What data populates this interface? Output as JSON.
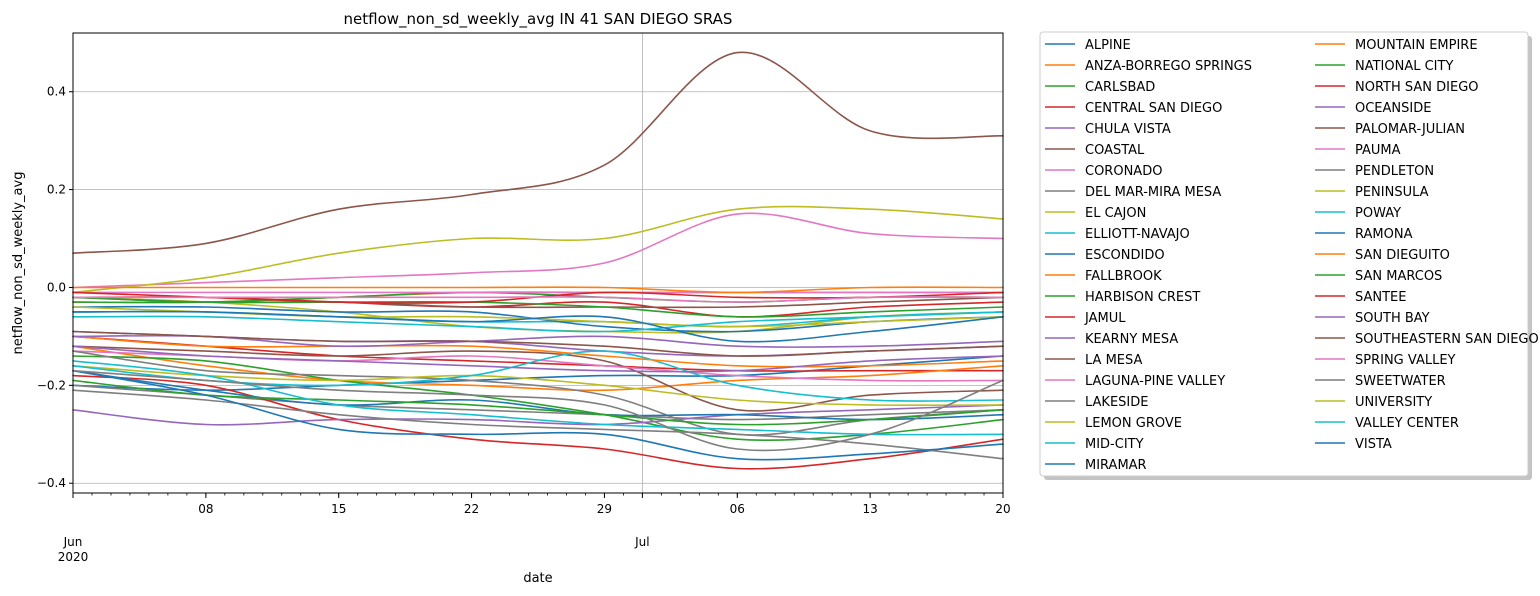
{
  "chart_data": {
    "type": "line",
    "title": "netflow_non_sd_weekly_avg IN 41 SAN DIEGO SRAS",
    "xlabel": "date",
    "ylabel": "netflow_non_sd_weekly_avg",
    "x_range": [
      "2020-06-01",
      "2020-07-20"
    ],
    "ylim": [
      -0.42,
      0.52
    ],
    "grid": "major",
    "legend_placement": "outside-right",
    "x_ticks": [
      {
        "date": "2020-06-01",
        "label": "Jun",
        "sublabel": "2020"
      },
      {
        "date": "2020-06-08",
        "label": "08"
      },
      {
        "date": "2020-06-15",
        "label": "15"
      },
      {
        "date": "2020-06-22",
        "label": "22"
      },
      {
        "date": "2020-06-29",
        "label": "29"
      },
      {
        "date": "2020-07-01",
        "label": "Jul"
      },
      {
        "date": "2020-07-06",
        "label": "06"
      },
      {
        "date": "2020-07-13",
        "label": "13"
      },
      {
        "date": "2020-07-20",
        "label": "20"
      }
    ],
    "y_ticks": [
      -0.4,
      -0.2,
      0.0,
      0.2,
      0.4
    ],
    "y_tick_labels": [
      "−0.4",
      "−0.2",
      "0.0",
      "0.2",
      "0.4"
    ],
    "x": [
      "2020-06-01",
      "2020-06-08",
      "2020-06-15",
      "2020-06-22",
      "2020-06-29",
      "2020-07-06",
      "2020-07-13",
      "2020-07-20"
    ],
    "series": [
      {
        "name": "ALPINE",
        "color": "#1f77b4",
        "values": [
          -0.2,
          -0.21,
          -0.2,
          -0.19,
          -0.18,
          -0.18,
          -0.16,
          -0.14
        ]
      },
      {
        "name": "ANZA-BORREGO SPRINGS",
        "color": "#ff7f0e",
        "values": [
          -0.03,
          -0.03,
          -0.02,
          -0.01,
          -0.01,
          -0.01,
          -0.01,
          -0.01
        ]
      },
      {
        "name": "CARLSBAD",
        "color": "#2ca02c",
        "values": [
          -0.03,
          -0.03,
          -0.02,
          -0.01,
          -0.02,
          -0.03,
          -0.02,
          -0.02
        ]
      },
      {
        "name": "CENTRAL SAN DIEGO",
        "color": "#d62728",
        "values": [
          -0.1,
          -0.12,
          -0.14,
          -0.15,
          -0.16,
          -0.17,
          -0.17,
          -0.17
        ]
      },
      {
        "name": "CHULA VISTA",
        "color": "#9467bd",
        "values": [
          -0.09,
          -0.1,
          -0.11,
          -0.11,
          -0.13,
          -0.14,
          -0.13,
          -0.12
        ]
      },
      {
        "name": "COASTAL",
        "color": "#8c564b",
        "values": [
          0.07,
          0.09,
          0.16,
          0.19,
          0.25,
          0.48,
          0.32,
          0.31
        ]
      },
      {
        "name": "CORONADO",
        "color": "#e377c2",
        "values": [
          -0.01,
          -0.01,
          -0.01,
          -0.01,
          -0.01,
          -0.01,
          -0.01,
          -0.01
        ]
      },
      {
        "name": "DEL MAR-MIRA MESA",
        "color": "#7f7f7f",
        "values": [
          -0.2,
          -0.22,
          -0.24,
          -0.25,
          -0.26,
          -0.27,
          -0.26,
          -0.25
        ]
      },
      {
        "name": "EL CAJON",
        "color": "#bcbd22",
        "values": [
          -0.02,
          -0.03,
          -0.05,
          -0.08,
          -0.09,
          -0.09,
          -0.06,
          -0.05
        ]
      },
      {
        "name": "ELLIOTT-NAVAJO",
        "color": "#17becf",
        "values": [
          -0.05,
          -0.05,
          -0.06,
          -0.07,
          -0.07,
          -0.08,
          -0.06,
          -0.05
        ]
      },
      {
        "name": "ESCONDIDO",
        "color": "#1f77b4",
        "values": [
          -0.04,
          -0.04,
          -0.05,
          -0.05,
          -0.08,
          -0.09,
          -0.07,
          -0.06
        ]
      },
      {
        "name": "FALLBROOK",
        "color": "#ff7f0e",
        "values": [
          -0.12,
          -0.16,
          -0.19,
          -0.2,
          -0.21,
          -0.19,
          -0.18,
          -0.16
        ]
      },
      {
        "name": "HARBISON CREST",
        "color": "#2ca02c",
        "values": [
          -0.14,
          -0.15,
          -0.19,
          -0.22,
          -0.26,
          -0.31,
          -0.3,
          -0.27
        ]
      },
      {
        "name": "JAMUL",
        "color": "#d62728",
        "values": [
          -0.18,
          -0.2,
          -0.27,
          -0.31,
          -0.33,
          -0.37,
          -0.35,
          -0.31
        ]
      },
      {
        "name": "KEARNY MESA",
        "color": "#9467bd",
        "values": [
          -0.25,
          -0.28,
          -0.27,
          -0.27,
          -0.28,
          -0.26,
          -0.25,
          -0.24
        ]
      },
      {
        "name": "LA MESA",
        "color": "#8c564b",
        "values": [
          -0.12,
          -0.13,
          -0.14,
          -0.13,
          -0.15,
          -0.25,
          -0.22,
          -0.21
        ]
      },
      {
        "name": "LAGUNA-PINE VALLEY",
        "color": "#e377c2",
        "values": [
          -0.13,
          -0.14,
          -0.15,
          -0.14,
          -0.16,
          -0.18,
          -0.19,
          -0.19
        ]
      },
      {
        "name": "LAKESIDE",
        "color": "#7f7f7f",
        "values": [
          -0.13,
          -0.17,
          -0.18,
          -0.19,
          -0.22,
          -0.3,
          -0.27,
          -0.25
        ]
      },
      {
        "name": "LEMON GROVE",
        "color": "#bcbd22",
        "values": [
          -0.16,
          -0.18,
          -0.19,
          -0.18,
          -0.2,
          -0.23,
          -0.24,
          -0.24
        ]
      },
      {
        "name": "MID-CITY",
        "color": "#17becf",
        "values": [
          -0.16,
          -0.19,
          -0.2,
          -0.18,
          -0.13,
          -0.2,
          -0.23,
          -0.23
        ]
      },
      {
        "name": "MIRAMAR",
        "color": "#1f77b4",
        "values": [
          -0.17,
          -0.21,
          -0.24,
          -0.23,
          -0.26,
          -0.26,
          -0.27,
          -0.26
        ]
      },
      {
        "name": "MOUNTAIN EMPIRE",
        "color": "#ff7f0e",
        "values": [
          -0.1,
          -0.12,
          -0.12,
          -0.12,
          -0.14,
          -0.16,
          -0.16,
          -0.15
        ]
      },
      {
        "name": "NATIONAL CITY",
        "color": "#2ca02c",
        "values": [
          -0.19,
          -0.22,
          -0.23,
          -0.24,
          -0.26,
          -0.28,
          -0.27,
          -0.25
        ]
      },
      {
        "name": "NORTH SAN DIEGO",
        "color": "#d62728",
        "values": [
          -0.02,
          -0.02,
          -0.03,
          -0.04,
          -0.03,
          -0.06,
          -0.04,
          -0.03
        ]
      },
      {
        "name": "OCEANSIDE",
        "color": "#9467bd",
        "values": [
          -0.1,
          -0.1,
          -0.12,
          -0.11,
          -0.1,
          -0.12,
          -0.12,
          -0.11
        ]
      },
      {
        "name": "PALOMAR-JULIAN",
        "color": "#8c564b",
        "values": [
          -0.02,
          -0.03,
          -0.03,
          -0.04,
          -0.04,
          -0.04,
          -0.03,
          -0.02
        ]
      },
      {
        "name": "PAUMA",
        "color": "#e377c2",
        "values": [
          0.0,
          0.01,
          0.02,
          0.03,
          0.05,
          0.15,
          0.11,
          0.1
        ]
      },
      {
        "name": "PENDLETON",
        "color": "#7f7f7f",
        "values": [
          -0.21,
          -0.23,
          -0.26,
          -0.28,
          -0.29,
          -0.3,
          -0.32,
          -0.35
        ]
      },
      {
        "name": "PENINSULA",
        "color": "#bcbd22",
        "values": [
          -0.01,
          0.02,
          0.07,
          0.1,
          0.1,
          0.16,
          0.16,
          0.14
        ]
      },
      {
        "name": "POWAY",
        "color": "#17becf",
        "values": [
          -0.15,
          -0.18,
          -0.24,
          -0.26,
          -0.28,
          -0.29,
          -0.3,
          -0.3
        ]
      },
      {
        "name": "RAMONA",
        "color": "#1f77b4",
        "values": [
          -0.17,
          -0.22,
          -0.29,
          -0.3,
          -0.3,
          -0.35,
          -0.34,
          -0.32
        ]
      },
      {
        "name": "SAN DIEGUITO",
        "color": "#ff7f0e",
        "values": [
          0.0,
          0.0,
          0.0,
          0.0,
          0.0,
          -0.01,
          0.0,
          0.0
        ]
      },
      {
        "name": "SAN MARCOS",
        "color": "#2ca02c",
        "values": [
          -0.02,
          -0.03,
          -0.03,
          -0.03,
          -0.04,
          -0.06,
          -0.05,
          -0.04
        ]
      },
      {
        "name": "SANTEE",
        "color": "#d62728",
        "values": [
          -0.01,
          -0.02,
          -0.03,
          -0.03,
          -0.01,
          -0.02,
          -0.02,
          -0.01
        ]
      },
      {
        "name": "SOUTH BAY",
        "color": "#9467bd",
        "values": [
          -0.12,
          -0.14,
          -0.15,
          -0.16,
          -0.17,
          -0.17,
          -0.15,
          -0.14
        ]
      },
      {
        "name": "SOUTHEASTERN SAN DIEGO",
        "color": "#8c564b",
        "values": [
          -0.09,
          -0.1,
          -0.11,
          -0.11,
          -0.12,
          -0.14,
          -0.13,
          -0.12
        ]
      },
      {
        "name": "SPRING VALLEY",
        "color": "#e377c2",
        "values": [
          -0.02,
          -0.02,
          -0.02,
          -0.02,
          -0.02,
          -0.03,
          -0.02,
          -0.02
        ]
      },
      {
        "name": "SWEETWATER",
        "color": "#7f7f7f",
        "values": [
          -0.17,
          -0.19,
          -0.21,
          -0.22,
          -0.24,
          -0.33,
          -0.3,
          -0.19
        ]
      },
      {
        "name": "UNIVERSITY",
        "color": "#bcbd22",
        "values": [
          -0.04,
          -0.05,
          -0.06,
          -0.06,
          -0.07,
          -0.08,
          -0.07,
          -0.06
        ]
      },
      {
        "name": "VALLEY CENTER",
        "color": "#17becf",
        "values": [
          -0.06,
          -0.06,
          -0.07,
          -0.08,
          -0.09,
          -0.07,
          -0.06,
          -0.05
        ]
      },
      {
        "name": "VISTA",
        "color": "#1f77b4",
        "values": [
          -0.05,
          -0.05,
          -0.06,
          -0.07,
          -0.06,
          -0.11,
          -0.09,
          -0.06
        ]
      }
    ]
  }
}
